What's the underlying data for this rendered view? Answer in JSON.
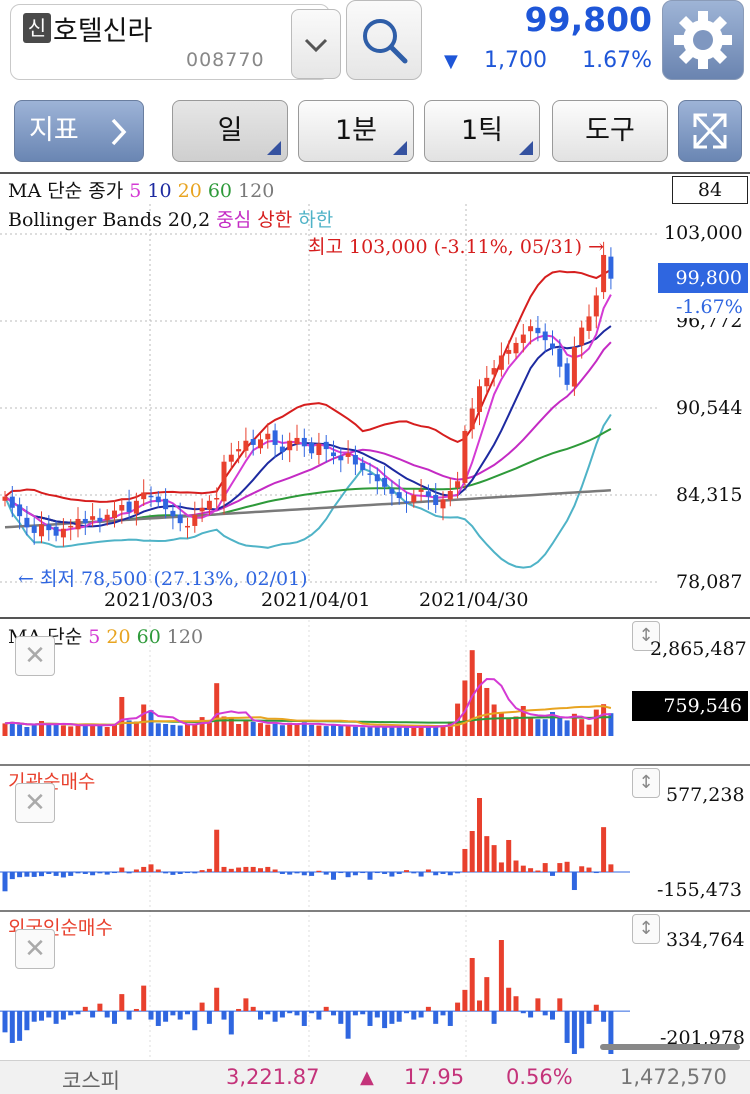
{
  "stock": {
    "badge": "신",
    "name": "호텔신라",
    "code": "008770"
  },
  "quote": {
    "price": "99,800",
    "arrow": "▼",
    "change": "1,700",
    "pct": "1.67%"
  },
  "toolbar": {
    "indicator": "지표",
    "period": "일",
    "minute": "1분",
    "tick": "1틱",
    "tools": "도구"
  },
  "price_panel": {
    "ma_legend": {
      "prefix": "MA 단순 종가",
      "p1": "5",
      "p2": "10",
      "p3": "20",
      "p4": "60",
      "p5": "120"
    },
    "bb_legend": {
      "prefix": "Bollinger Bands 20,2",
      "mid": "중심",
      "up": "상한",
      "low": "하한"
    },
    "count_box": "84",
    "high_note": "최고 103,000 (-3.11%, 05/31) →",
    "low_note": "← 최저 78,500 (27.13%, 02/01)",
    "y_ticks": [
      "103,000",
      "96,772",
      "90,544",
      "84,315",
      "78,087"
    ],
    "current_price": "99,800",
    "current_pct": "-1.67%",
    "x_ticks": [
      "2021/03/03",
      "2021/04/01",
      "2021/04/30"
    ]
  },
  "volume_panel": {
    "legend_prefix": "MA 단순",
    "p1": "5",
    "p2": "20",
    "p3": "60",
    "p4": "120",
    "y_top": "2,865,487",
    "current": "759,546"
  },
  "inst_panel": {
    "title": "기관순매수",
    "y_top": "577,238",
    "y_bottom": "-155,473"
  },
  "foreign_panel": {
    "title": "외국인순매수",
    "y_top": "334,764",
    "y_bottom": "-201,978"
  },
  "footer": {
    "index": "코스피",
    "value": "3,221.87",
    "arrow": "▲",
    "change": "17.95",
    "pct": "0.56%",
    "volume": "1,472,570"
  },
  "colors": {
    "up": "#e8402d",
    "down": "#2f66e0",
    "ma5": "#d43ad4",
    "ma10": "#1d2aa0",
    "ma20": "#e8a420",
    "ma60": "#2e9a3a",
    "ma120": "#7a7a7a",
    "bb_upper": "#d61e1e",
    "bb_mid": "#c42bc4",
    "bb_lower": "#4fb3c7"
  },
  "chart_data": [
    {
      "type": "candlestick",
      "title": "",
      "ylim": [
        78087,
        103000
      ],
      "y_ticks": [
        103000,
        96772,
        90544,
        84315,
        78087
      ],
      "x_ticks": [
        "2021/03/03",
        "2021/04/01",
        "2021/04/30"
      ],
      "last_close": 99800,
      "high": 103000,
      "low": 78500,
      "close": [
        84200,
        83400,
        82800,
        82000,
        81600,
        82200,
        81800,
        81400,
        81900,
        82100,
        82600,
        82300,
        82800,
        82400,
        82900,
        83200,
        83600,
        83100,
        83900,
        84500,
        84200,
        83800,
        83300,
        82800,
        82300,
        82100,
        82900,
        83400,
        83900,
        84100,
        86700,
        87200,
        87600,
        88200,
        87900,
        88300,
        88700,
        87900,
        87400,
        88200,
        88400,
        87800,
        87300,
        88000,
        87600,
        87100,
        86800,
        87300,
        86500,
        86100,
        85800,
        85300,
        84900,
        84400,
        84100,
        83800,
        84300,
        84700,
        84200,
        83600,
        84000,
        84600,
        85300,
        88900,
        90500,
        92100,
        92700,
        93400,
        94300,
        94700,
        95200,
        95800,
        96400,
        95900,
        95400,
        94800,
        93500,
        92200,
        94900,
        96300,
        97100,
        98600,
        101500,
        99800
      ],
      "volume": [
        420000,
        460000,
        380000,
        300000,
        350000,
        500000,
        430000,
        380000,
        350000,
        320000,
        340000,
        410000,
        380000,
        350000,
        300000,
        390000,
        1300000,
        520000,
        480000,
        1050000,
        860000,
        420000,
        400000,
        370000,
        350000,
        390000,
        410000,
        630000,
        440000,
        1760000,
        650000,
        620000,
        400000,
        510000,
        470000,
        430000,
        380000,
        410000,
        360000,
        440000,
        390000,
        460000,
        370000,
        350000,
        330000,
        380000,
        360000,
        330000,
        310000,
        290000,
        300000,
        330000,
        320000,
        300000,
        290000,
        280000,
        310000,
        330000,
        300000,
        320000,
        360000,
        480000,
        1080000,
        1850000,
        2860000,
        2100000,
        1600000,
        1050000,
        750000,
        600000,
        650000,
        1000000,
        620000,
        560000,
        560000,
        800000,
        620000,
        520000,
        740000,
        560000,
        380000,
        880000,
        1060000,
        759546
      ]
    },
    {
      "type": "bar",
      "title": "기관순매수",
      "ylim": [
        -155473,
        577238
      ],
      "values": [
        -150000,
        -55000,
        -40000,
        -36000,
        -38000,
        -32000,
        -15000,
        -30000,
        -42000,
        -30000,
        -10000,
        -15000,
        -25000,
        -10000,
        -20000,
        -5000,
        35000,
        -10000,
        20000,
        40000,
        60000,
        20000,
        -10000,
        -22000,
        -15000,
        -5000,
        -10000,
        15000,
        25000,
        330000,
        40000,
        25000,
        35000,
        40000,
        40000,
        30000,
        40000,
        20000,
        -15000,
        -20000,
        -10000,
        -25000,
        -30000,
        10000,
        -20000,
        -60000,
        -5000,
        -40000,
        -25000,
        -5000,
        -60000,
        -5000,
        -15000,
        -35000,
        -15000,
        15000,
        -10000,
        -35000,
        20000,
        -25000,
        -15000,
        -25000,
        -10000,
        180000,
        320000,
        577238,
        280000,
        210000,
        75000,
        250000,
        90000,
        50000,
        30000,
        12000,
        70000,
        -30000,
        70000,
        80000,
        -140000,
        45000,
        35000,
        -5000,
        350000,
        60000
      ]
    },
    {
      "type": "bar",
      "title": "외국인순매수",
      "ylim": [
        -201978,
        334764
      ],
      "values": [
        -100000,
        -150000,
        -140000,
        -90000,
        -50000,
        -45000,
        -30000,
        -60000,
        -40000,
        -20000,
        -15000,
        20000,
        -30000,
        35000,
        -30000,
        -60000,
        80000,
        -40000,
        10000,
        120000,
        -40000,
        -70000,
        -50000,
        -20000,
        -40000,
        -15000,
        -90000,
        40000,
        -60000,
        110000,
        -40000,
        -110000,
        10000,
        60000,
        20000,
        -40000,
        -15000,
        -50000,
        -30000,
        -10000,
        -20000,
        -70000,
        -10000,
        -40000,
        20000,
        -20000,
        -60000,
        -130000,
        -20000,
        -15000,
        -70000,
        -30000,
        -80000,
        -60000,
        -50000,
        -10000,
        -40000,
        -30000,
        20000,
        -60000,
        -20000,
        -70000,
        40000,
        100000,
        250000,
        50000,
        160000,
        -60000,
        334764,
        110000,
        70000,
        -10000,
        -30000,
        60000,
        -20000,
        -40000,
        60000,
        -150000,
        -201978,
        -175000,
        -60000,
        30000,
        -50000,
        -201978
      ]
    }
  ]
}
